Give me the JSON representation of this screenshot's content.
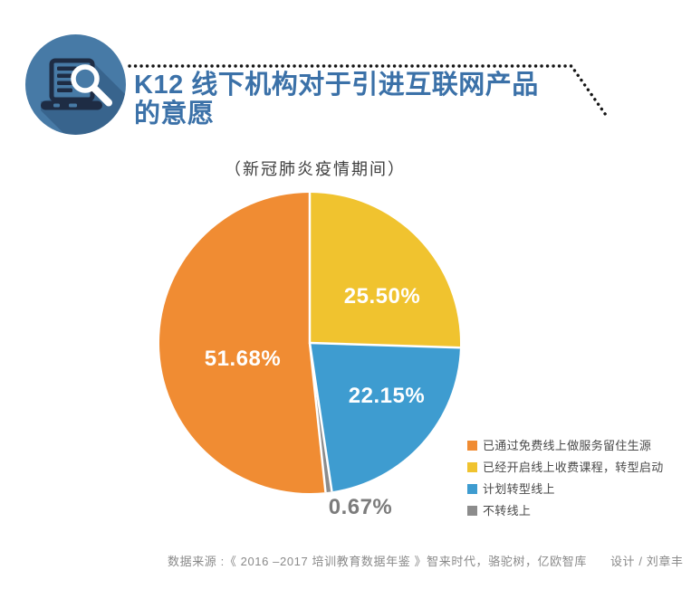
{
  "page": {
    "background": "#FFFFFF"
  },
  "header": {
    "icon": "laptop-magnifier-icon",
    "icon_colors": {
      "circle": "#477AA6",
      "device": "#1E2C44",
      "glass": "#FFFFFF"
    },
    "title_line1": "K12 线下机构对于引进互联网产品",
    "title_line2": "的意愿",
    "title_color": "#3B71A8"
  },
  "subtitle": "（新冠肺炎疫情期间）",
  "chart_data": {
    "type": "pie",
    "title": "K12 线下机构对于引进互联网产品的意愿",
    "subtitle": "（新冠肺炎疫情期间）",
    "slices": [
      {
        "label": "已通过免费线上做服务留住生源",
        "value": 51.68,
        "color": "#F08C33"
      },
      {
        "label": "已经开启线上收费课程，转型启动",
        "value": 25.5,
        "color": "#F0C32F"
      },
      {
        "label": "计划转型线上",
        "value": 22.15,
        "color": "#3E9CD0"
      },
      {
        "label": "不转线上",
        "value": 0.67,
        "color": "#8C8C8C"
      }
    ],
    "start_angle": "12-o-clock",
    "direction": "clockwise",
    "draw_order": [
      1,
      2,
      3,
      0
    ],
    "value_suffix": "%",
    "separator_color": "#FFFFFF",
    "legend_position": "bottom-right",
    "outside_label_color": "#7C7C7C"
  },
  "footer": {
    "source": "数据来源 :《 2016 –2017 培训教育数据年鉴 》智来时代，骆驼树，亿欧智库",
    "designer": "设计 / 刘章丰"
  }
}
